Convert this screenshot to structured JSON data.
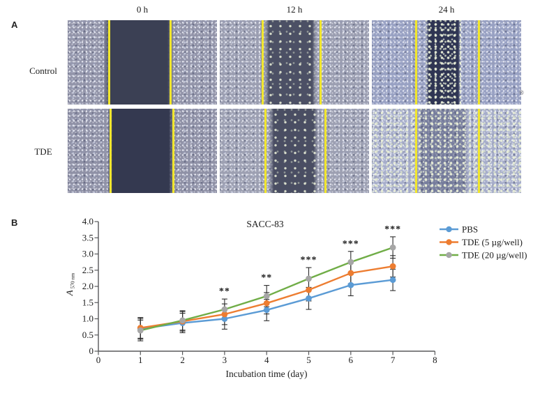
{
  "panelA": {
    "label": "A",
    "column_headers": [
      "0 h",
      "12 h",
      "24 h"
    ],
    "row_labels": [
      "Control",
      "TDE"
    ],
    "watermark": "®",
    "tiles": [
      {
        "name": "control-0h",
        "row": 0,
        "col": 0,
        "base": "#9294a9",
        "gap_color": "#3b4054",
        "gap_start": 24,
        "gap_end": 71,
        "cells": "none",
        "cells_full": false,
        "line1": 27,
        "line2": 68
      },
      {
        "name": "control-12h",
        "row": 0,
        "col": 1,
        "base": "#9b9eb1",
        "gap_color": "#4c5065",
        "gap_start": 30,
        "gap_end": 65,
        "cells": "sparse",
        "cells_full": false,
        "line1": 28,
        "line2": 67
      },
      {
        "name": "control-24h",
        "row": 0,
        "col": 2,
        "base": "#98a1c3",
        "gap_color": "#2f3553",
        "gap_start": 36,
        "gap_end": 60,
        "cells": "dense",
        "cells_full": false,
        "line1": 29,
        "line2": 71
      },
      {
        "name": "tde-0h",
        "row": 1,
        "col": 0,
        "base": "#8f91a6",
        "gap_color": "#343950",
        "gap_start": 26,
        "gap_end": 72,
        "cells": "none",
        "cells_full": false,
        "line1": 28,
        "line2": 70
      },
      {
        "name": "tde-12h",
        "row": 1,
        "col": 1,
        "base": "#9da0b2",
        "gap_color": "#4a4e63",
        "gap_start": 33,
        "gap_end": 66,
        "cells": "sparse",
        "cells_full": false,
        "line1": 30,
        "line2": 70
      },
      {
        "name": "tde-24h",
        "row": 1,
        "col": 2,
        "base": "#a6adca",
        "gap_color": "rgba(58,64,100,0.45)",
        "gap_start": 30,
        "gap_end": 65,
        "cells": "dense",
        "cells_full": true,
        "line1": 29,
        "line2": 71
      }
    ]
  },
  "panelB": {
    "label": "B"
  },
  "chart_data": {
    "type": "line",
    "title": "SACC-83",
    "xlabel": "Incubation time (day)",
    "ylabel": "A 570 nm",
    "ylabel_main": "A",
    "ylabel_sub": "570 nm",
    "xlim": [
      0,
      8
    ],
    "ylim": [
      0,
      4.0
    ],
    "xtick_labels": [
      "0",
      "1",
      "2",
      "3",
      "4",
      "5",
      "6",
      "7",
      "8"
    ],
    "ytick_labels": [
      "0",
      "0.5",
      "1.0",
      "1.5",
      "2.0",
      "2.5",
      "3.0",
      "3.5",
      "4.0"
    ],
    "x": [
      1,
      2,
      3,
      4,
      5,
      6,
      7
    ],
    "series": [
      {
        "name": "PBS",
        "line_color": "#5b9bd5",
        "marker_color": "#5b9bd5",
        "values": [
          0.69,
          0.87,
          1.0,
          1.27,
          1.63,
          2.04,
          2.2
        ]
      },
      {
        "name": "TDE (5 µg/well)",
        "line_color": "#ed7d31",
        "marker_color": "#ed7d31",
        "values": [
          0.72,
          0.92,
          1.14,
          1.48,
          1.89,
          2.41,
          2.62
        ]
      },
      {
        "name": "TDE (20 µg/well)",
        "line_color": "#70ad47",
        "marker_color": "#a6a6a6",
        "values": [
          0.64,
          0.95,
          1.29,
          1.7,
          2.24,
          2.75,
          3.2
        ]
      }
    ],
    "errors": [
      0.32,
      0.3,
      0.32,
      0.33,
      0.34,
      0.33,
      0.33
    ],
    "significance": [
      {
        "x": 3,
        "label": "**"
      },
      {
        "x": 4,
        "label": "**"
      },
      {
        "x": 5,
        "label": "***"
      },
      {
        "x": 6,
        "label": "***"
      },
      {
        "x": 7,
        "label": "***"
      }
    ],
    "legend_position": "right",
    "grid": false,
    "axis_color": "#58595b",
    "sig_color": "#1b1b2f"
  }
}
